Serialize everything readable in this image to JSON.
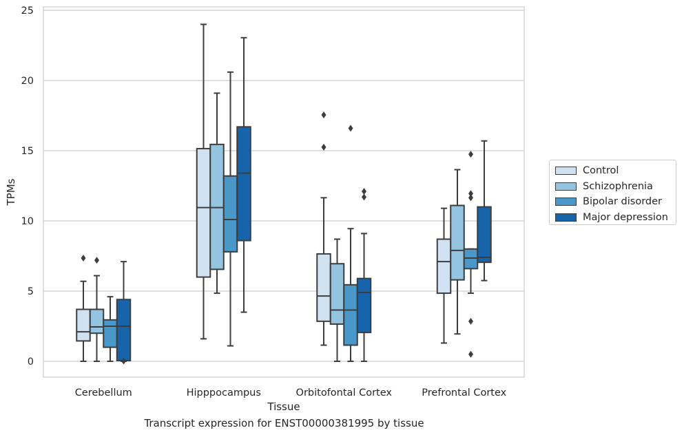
{
  "caption": "Transcript expression for ENST00000381995 by tissue",
  "chart_data": {
    "type": "box",
    "title": "",
    "xlabel": "Tissue",
    "ylabel": "TPMs",
    "ylim": [
      -1.1,
      25.3
    ],
    "yticks": [
      0,
      5,
      10,
      15,
      20,
      25
    ],
    "grid": "horizontal",
    "legend_position": "right",
    "categories": [
      "Cerebellum",
      "Hipppocampus",
      "Orbitofontal Cortex",
      "Prefrontal Cortex"
    ],
    "series": [
      {
        "name": "Control",
        "color": "#d0e1f2",
        "boxes": [
          {
            "whislo": 0,
            "q1": 1.45,
            "med": 2.1,
            "q3": 3.7,
            "whishi": 5.7,
            "fliers": [
              7.35
            ]
          },
          {
            "whislo": 1.6,
            "q1": 6.0,
            "med": 10.95,
            "q3": 15.15,
            "whishi": 24.0,
            "fliers": []
          },
          {
            "whislo": 1.15,
            "q1": 2.85,
            "med": 4.65,
            "q3": 7.65,
            "whishi": 11.65,
            "fliers": [
              15.25,
              17.55
            ]
          },
          {
            "whislo": 1.3,
            "q1": 4.85,
            "med": 7.1,
            "q3": 8.7,
            "whishi": 10.9,
            "fliers": []
          }
        ]
      },
      {
        "name": "Schizophrenia",
        "color": "#94c4df",
        "boxes": [
          {
            "whislo": 0,
            "q1": 2.0,
            "med": 2.45,
            "q3": 3.7,
            "whishi": 6.1,
            "fliers": [
              7.2
            ]
          },
          {
            "whislo": 4.85,
            "q1": 6.55,
            "med": 10.95,
            "q3": 15.45,
            "whishi": 19.1,
            "fliers": []
          },
          {
            "whislo": 0,
            "q1": 2.65,
            "med": 3.65,
            "q3": 6.95,
            "whishi": 8.7,
            "fliers": []
          },
          {
            "whislo": 1.95,
            "q1": 5.8,
            "med": 7.9,
            "q3": 11.1,
            "whishi": 13.65,
            "fliers": []
          }
        ]
      },
      {
        "name": "Bipolar disorder",
        "color": "#4a98c9",
        "boxes": [
          {
            "whislo": 0,
            "q1": 1.0,
            "med": 2.5,
            "q3": 2.95,
            "whishi": 4.6,
            "fliers": []
          },
          {
            "whislo": 1.1,
            "q1": 7.8,
            "med": 10.1,
            "q3": 13.2,
            "whishi": 20.6,
            "fliers": []
          },
          {
            "whislo": 0,
            "q1": 1.15,
            "med": 3.65,
            "q3": 5.45,
            "whishi": 9.45,
            "fliers": [
              16.6
            ]
          },
          {
            "whislo": 4.85,
            "q1": 6.6,
            "med": 7.35,
            "q3": 8.0,
            "whishi": 8.0,
            "fliers": [
              0.5,
              2.85,
              11.65,
              11.95,
              14.75
            ]
          }
        ]
      },
      {
        "name": "Major depression",
        "color": "#1764ab",
        "boxes": [
          {
            "whislo": 0,
            "q1": 0.05,
            "med": 2.5,
            "q3": 4.4,
            "whishi": 7.1,
            "fliers": [
              0.02
            ]
          },
          {
            "whislo": 3.5,
            "q1": 8.6,
            "med": 13.4,
            "q3": 16.7,
            "whishi": 23.05,
            "fliers": []
          },
          {
            "whislo": 0,
            "q1": 2.05,
            "med": 4.9,
            "q3": 5.9,
            "whishi": 9.1,
            "fliers": [
              11.7,
              12.1
            ]
          },
          {
            "whislo": 5.75,
            "q1": 7.05,
            "med": 7.4,
            "q3": 11.0,
            "whishi": 15.7,
            "fliers": []
          }
        ]
      }
    ]
  }
}
